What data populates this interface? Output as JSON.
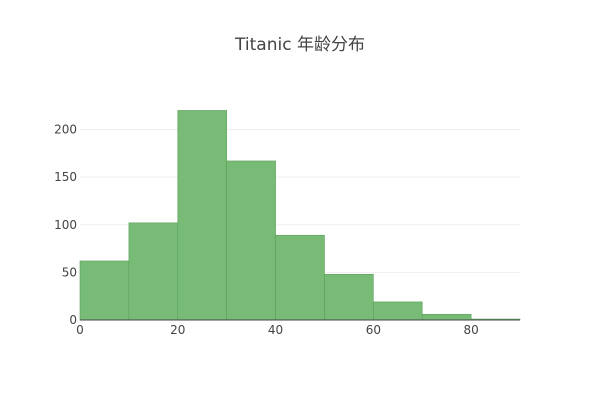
{
  "chart_data": {
    "type": "bar",
    "title": "Titanic 年龄分布",
    "xlabel": "",
    "ylabel": "",
    "bins": [
      {
        "x0": 0,
        "x1": 10,
        "count": 62
      },
      {
        "x0": 10,
        "x1": 20,
        "count": 102
      },
      {
        "x0": 20,
        "x1": 30,
        "count": 220
      },
      {
        "x0": 30,
        "x1": 40,
        "count": 167
      },
      {
        "x0": 40,
        "x1": 50,
        "count": 89
      },
      {
        "x0": 50,
        "x1": 60,
        "count": 48
      },
      {
        "x0": 60,
        "x1": 70,
        "count": 19
      },
      {
        "x0": 70,
        "x1": 80,
        "count": 6
      },
      {
        "x0": 80,
        "x1": 90,
        "count": 1
      }
    ],
    "xlim": [
      0,
      90
    ],
    "ylim": [
      0,
      231
    ],
    "xticks": [
      0,
      20,
      40,
      60,
      80
    ],
    "yticks": [
      0,
      50,
      100,
      150,
      200
    ],
    "grid": true,
    "bar_color": "#77bb77",
    "bar_outline_color": "#5aa05a"
  }
}
